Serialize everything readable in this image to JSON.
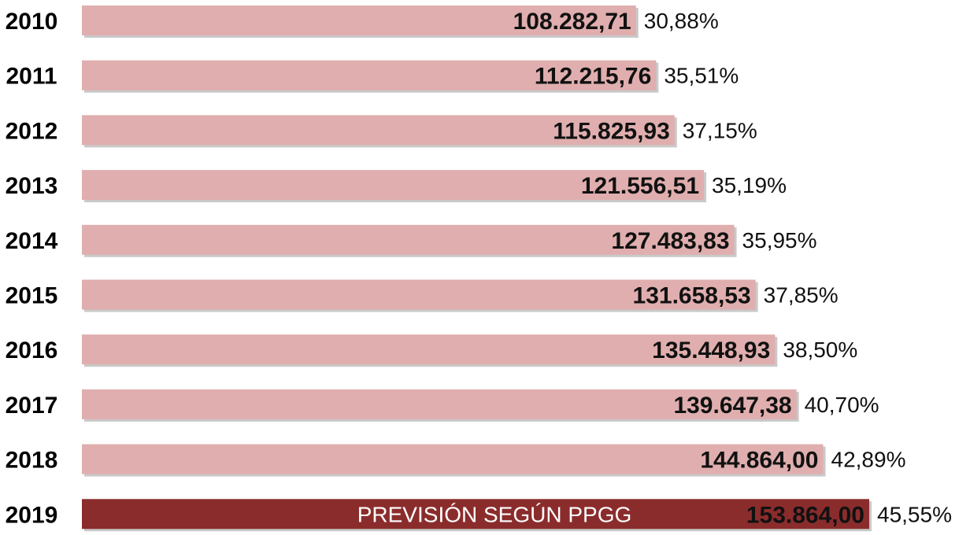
{
  "chart_data": {
    "type": "bar",
    "orientation": "horizontal",
    "title": "",
    "xlabel": "",
    "ylabel": "",
    "grid": false,
    "legend": "none",
    "xlim": [
      0,
      155000
    ],
    "categories": [
      "2010",
      "2011",
      "2012",
      "2013",
      "2014",
      "2015",
      "2016",
      "2017",
      "2018",
      "2019"
    ],
    "values": [
      108282.71,
      112215.76,
      115825.93,
      121556.51,
      127483.83,
      131658.53,
      135448.93,
      139647.38,
      144864.0,
      153864.0
    ],
    "value_labels": [
      "108.282,71",
      "112.215,76",
      "115.825,93",
      "121.556,51",
      "127.483,83",
      "131.658,53",
      "135.448,93",
      "139.647,38",
      "144.864,00",
      "153.864,00"
    ],
    "percent_labels": [
      "30,88%",
      "35,51%",
      "37,15%",
      "35,19%",
      "35,95%",
      "37,85%",
      "38,50%",
      "40,70%",
      "42,89%",
      "45,55%"
    ],
    "highlight_index": 9,
    "highlight_note": "PREVISIÓN SEGÚN PPGG",
    "colors": {
      "bar": "#e0aeae",
      "highlight": "#8b2c2c",
      "shadow": "#c9c9c9"
    }
  }
}
